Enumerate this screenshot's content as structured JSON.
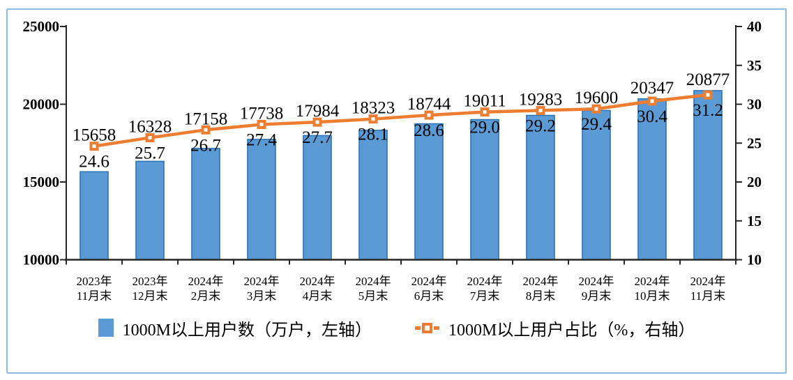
{
  "frame": {
    "border_color": "#8FBCE6",
    "background": "#FFFFFF"
  },
  "chart_data": {
    "type": "combo-bar-line",
    "title": "",
    "grid": false,
    "legend_position": "bottom",
    "categories": [
      {
        "line1": "2023年",
        "line2": "11月末"
      },
      {
        "line1": "2023年",
        "line2": "12月末"
      },
      {
        "line1": "2024年",
        "line2": "2月末"
      },
      {
        "line1": "2024年",
        "line2": "3月末"
      },
      {
        "line1": "2024年",
        "line2": "4月末"
      },
      {
        "line1": "2024年",
        "line2": "5月末"
      },
      {
        "line1": "2024年",
        "line2": "6月末"
      },
      {
        "line1": "2024年",
        "line2": "7月末"
      },
      {
        "line1": "2024年",
        "line2": "8月末"
      },
      {
        "line1": "2024年",
        "line2": "9月末"
      },
      {
        "line1": "2024年",
        "line2": "10月末"
      },
      {
        "line1": "2024年",
        "line2": "11月末"
      }
    ],
    "series": [
      {
        "name": "1000M以上用户数（万户，左轴）",
        "type": "bar",
        "axis": "left",
        "values": [
          15658,
          16328,
          17158,
          17738,
          17984,
          18323,
          18744,
          19011,
          19283,
          19600,
          20347,
          20877
        ],
        "labels": [
          "15658",
          "16328",
          "17158",
          "17738",
          "17984",
          "18323",
          "18744",
          "19011",
          "19283",
          "19600",
          "20347",
          "20877"
        ],
        "fill_color": "#5B9BD5",
        "border_color": "#2E75B6"
      },
      {
        "name": "1000M以上用户占比（%，右轴）",
        "type": "line",
        "axis": "right",
        "values": [
          24.6,
          25.7,
          26.7,
          27.4,
          27.7,
          28.1,
          28.6,
          29.0,
          29.2,
          29.4,
          30.4,
          31.2
        ],
        "labels": [
          "24.6",
          "25.7",
          "26.7",
          "27.4",
          "27.7",
          "28.1",
          "28.6",
          "29.0",
          "29.2",
          "29.4",
          "30.4",
          "31.2"
        ],
        "color": "#ED7D31",
        "marker": "square-with-white-center"
      }
    ],
    "left_axis": {
      "min": 10000,
      "max": 25000,
      "ticks": [
        25000,
        20000,
        15000,
        10000
      ]
    },
    "right_axis": {
      "min": 10,
      "max": 40,
      "ticks": [
        40,
        35,
        30,
        25,
        20,
        15,
        10
      ]
    },
    "axis_color": "#262626"
  }
}
